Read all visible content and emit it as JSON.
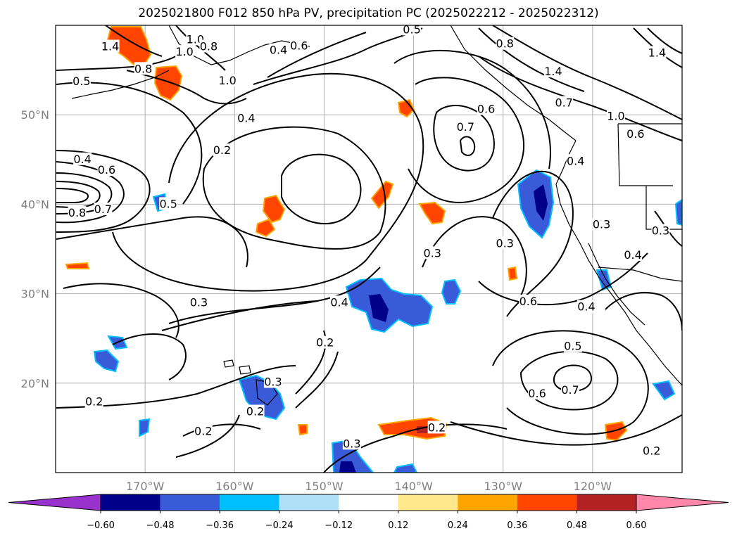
{
  "title": "2025021800 F012 850 hPa PV, precipitation PC (2025022212 - 2025022312)",
  "map": {
    "lon_range": [
      -180,
      -110
    ],
    "lat_range": [
      10,
      60
    ],
    "lon_ticks": [
      {
        "value": -170,
        "label": "170°W"
      },
      {
        "value": -160,
        "label": "160°W"
      },
      {
        "value": -150,
        "label": "150°W"
      },
      {
        "value": -140,
        "label": "140°W"
      },
      {
        "value": -130,
        "label": "130°W"
      },
      {
        "value": -120,
        "label": "120°W"
      }
    ],
    "lat_ticks": [
      {
        "value": 50,
        "label": "50°N"
      },
      {
        "value": 40,
        "label": "40°N"
      },
      {
        "value": 30,
        "label": "30°N"
      },
      {
        "value": 20,
        "label": "20°N"
      }
    ],
    "grid": true
  },
  "contour_labels": [
    {
      "text": "0.5",
      "lon": -140.2,
      "lat": 59.5
    },
    {
      "text": "0.8",
      "lon": -129.8,
      "lat": 57.9
    },
    {
      "text": "1.4",
      "lon": -173.9,
      "lat": 57.6
    },
    {
      "text": "1.0",
      "lon": -164.4,
      "lat": 58.4
    },
    {
      "text": "1.0",
      "lon": -165.6,
      "lat": 57.0
    },
    {
      "text": "0.8",
      "lon": -162.9,
      "lat": 57.6
    },
    {
      "text": "0.4",
      "lon": -155.1,
      "lat": 57.2
    },
    {
      "text": "0.6",
      "lon": -152.8,
      "lat": 57.7
    },
    {
      "text": "0.8",
      "lon": -170.2,
      "lat": 55.1
    },
    {
      "text": "0.5",
      "lon": -177.1,
      "lat": 53.7
    },
    {
      "text": "1.0",
      "lon": -160.8,
      "lat": 53.8
    },
    {
      "text": "1.4",
      "lon": -124.4,
      "lat": 54.8
    },
    {
      "text": "0.7",
      "lon": -123.2,
      "lat": 51.3
    },
    {
      "text": "0.6",
      "lon": -131.9,
      "lat": 50.6
    },
    {
      "text": "1.0",
      "lon": -117.4,
      "lat": 49.8
    },
    {
      "text": "0.6",
      "lon": -115.2,
      "lat": 47.8
    },
    {
      "text": "1.4",
      "lon": -112.8,
      "lat": 56.9
    },
    {
      "text": "0.4",
      "lon": -158.7,
      "lat": 49.6
    },
    {
      "text": "0.7",
      "lon": -134.2,
      "lat": 48.6
    },
    {
      "text": "0.2",
      "lon": -161.4,
      "lat": 46.0
    },
    {
      "text": "0.4",
      "lon": -177.0,
      "lat": 45.0
    },
    {
      "text": "0.6",
      "lon": -174.3,
      "lat": 43.8
    },
    {
      "text": "0.4",
      "lon": -121.9,
      "lat": 44.8
    },
    {
      "text": "0.5",
      "lon": -167.4,
      "lat": 40.0
    },
    {
      "text": "0.8",
      "lon": -177.6,
      "lat": 39.0
    },
    {
      "text": "0.7",
      "lon": -174.7,
      "lat": 39.4
    },
    {
      "text": "0.3",
      "lon": -119.0,
      "lat": 37.7
    },
    {
      "text": "0.3",
      "lon": -129.8,
      "lat": 35.6
    },
    {
      "text": "0.3",
      "lon": -137.9,
      "lat": 34.5
    },
    {
      "text": "0.3",
      "lon": -112.4,
      "lat": 37.0
    },
    {
      "text": "0.4",
      "lon": -115.5,
      "lat": 34.3
    },
    {
      "text": "0.6",
      "lon": -127.2,
      "lat": 29.1
    },
    {
      "text": "0.3",
      "lon": -164.0,
      "lat": 29.0
    },
    {
      "text": "0.4",
      "lon": -148.3,
      "lat": 29.0
    },
    {
      "text": "0.4",
      "lon": -120.7,
      "lat": 28.5
    },
    {
      "text": "0.2",
      "lon": -149.9,
      "lat": 24.5
    },
    {
      "text": "0.5",
      "lon": -122.2,
      "lat": 24.1
    },
    {
      "text": "0.3",
      "lon": -155.7,
      "lat": 20.1
    },
    {
      "text": "0.6",
      "lon": -126.2,
      "lat": 18.8
    },
    {
      "text": "0.7",
      "lon": -122.5,
      "lat": 19.2
    },
    {
      "text": "0.2",
      "lon": -175.7,
      "lat": 17.9
    },
    {
      "text": "0.2",
      "lon": -157.7,
      "lat": 16.8
    },
    {
      "text": "0.2",
      "lon": -163.5,
      "lat": 14.6
    },
    {
      "text": "0.2",
      "lon": -137.4,
      "lat": 15.0
    },
    {
      "text": "0.3",
      "lon": -146.9,
      "lat": 13.2
    },
    {
      "text": "0.2",
      "lon": -113.4,
      "lat": 12.4
    }
  ],
  "colorbar": {
    "levels": [
      -0.6,
      -0.48,
      -0.36,
      -0.24,
      -0.12,
      0.12,
      0.24,
      0.36,
      0.48,
      0.6
    ],
    "tick_labels": [
      "−0.60",
      "−0.48",
      "−0.36",
      "−0.24",
      "−0.12",
      "0.12",
      "0.24",
      "0.36",
      "0.48",
      "0.60"
    ],
    "colors": [
      "#9932cc",
      "#00008b",
      "#3a5bd9",
      "#00bfff",
      "#b0e0f8",
      "#ffffff",
      "#ffe88c",
      "#ffa500",
      "#ff4500",
      "#b22222",
      "#ff88aa"
    ],
    "extend": "both"
  },
  "colors": {
    "grid": "#b0b0b0",
    "contour": "#000000",
    "frame": "#000000"
  }
}
